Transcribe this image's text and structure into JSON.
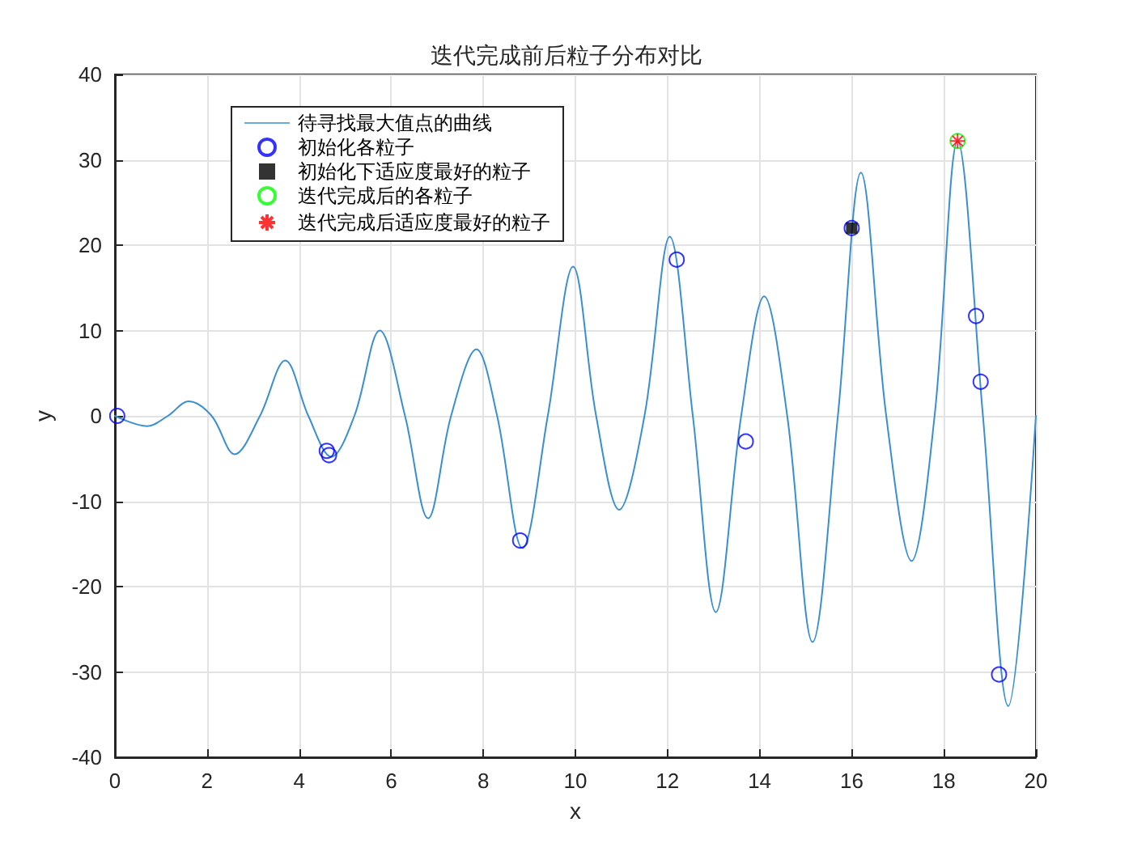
{
  "chart_data": {
    "type": "line",
    "title": "迭代完成前后粒子分布对比",
    "xlabel": "x",
    "ylabel": "y",
    "xlim": [
      0,
      20
    ],
    "xticks": [
      0,
      2,
      4,
      6,
      8,
      10,
      12,
      14,
      16,
      18,
      20
    ],
    "ylim": [
      -40,
      40
    ],
    "yticks": [
      -40,
      -30,
      -20,
      -10,
      0,
      10,
      20,
      30,
      40
    ],
    "grid": true,
    "legend": "top left",
    "series": [
      {
        "name": "待寻找最大值点的曲线",
        "color": "#3a8fd0",
        "marker": "none",
        "line_style": "solid",
        "x": [
          0,
          0.7,
          1.15,
          1.6,
          2.1,
          2.6,
          3.15,
          3.7,
          4.2,
          4.7,
          5.2,
          5.75,
          6.3,
          6.8,
          7.3,
          7.85,
          8.3,
          8.85,
          9.4,
          9.95,
          10.45,
          10.95,
          11.5,
          12.05,
          12.55,
          13.05,
          13.6,
          14.1,
          14.6,
          15.15,
          15.7,
          16.2,
          16.75,
          17.3,
          17.8,
          18.3,
          18.85,
          19.4,
          20
        ],
        "values": [
          0,
          -1.2,
          0,
          1.7,
          0,
          -4.5,
          0,
          6.5,
          0,
          -4.8,
          0,
          10,
          0,
          -12,
          0,
          7.8,
          0,
          -15.5,
          0,
          17.5,
          0,
          -11,
          0,
          21,
          0,
          -23,
          0,
          14,
          0,
          -26.5,
          0,
          28.5,
          0,
          -17,
          0,
          32.2,
          0,
          -34,
          0
        ]
      },
      {
        "name": "初始化各粒子",
        "type": "scatter",
        "color": "#0000ff",
        "marker": "circle",
        "x": [
          0.05,
          4.6,
          4.65,
          8.8,
          12.2,
          13.7,
          16,
          18.7,
          18.8,
          19.2
        ],
        "values": [
          0,
          -4.1,
          -4.6,
          -14.6,
          18.3,
          -3,
          22,
          11.7,
          4,
          -30.3
        ]
      },
      {
        "name": "初始化下适应度最好的粒子",
        "type": "scatter",
        "color": "#000000",
        "marker": "square",
        "x": [
          16
        ],
        "values": [
          22
        ]
      },
      {
        "name": "迭代完成后的各粒子",
        "type": "scatter",
        "color": "#00ff00",
        "marker": "circle",
        "x": [
          18.3
        ],
        "values": [
          32.2
        ]
      },
      {
        "name": "迭代完成后适应度最好的粒子",
        "type": "scatter",
        "color": "#ff0000",
        "marker": "cross",
        "x": [
          18.3
        ],
        "values": [
          32.2
        ]
      }
    ]
  }
}
